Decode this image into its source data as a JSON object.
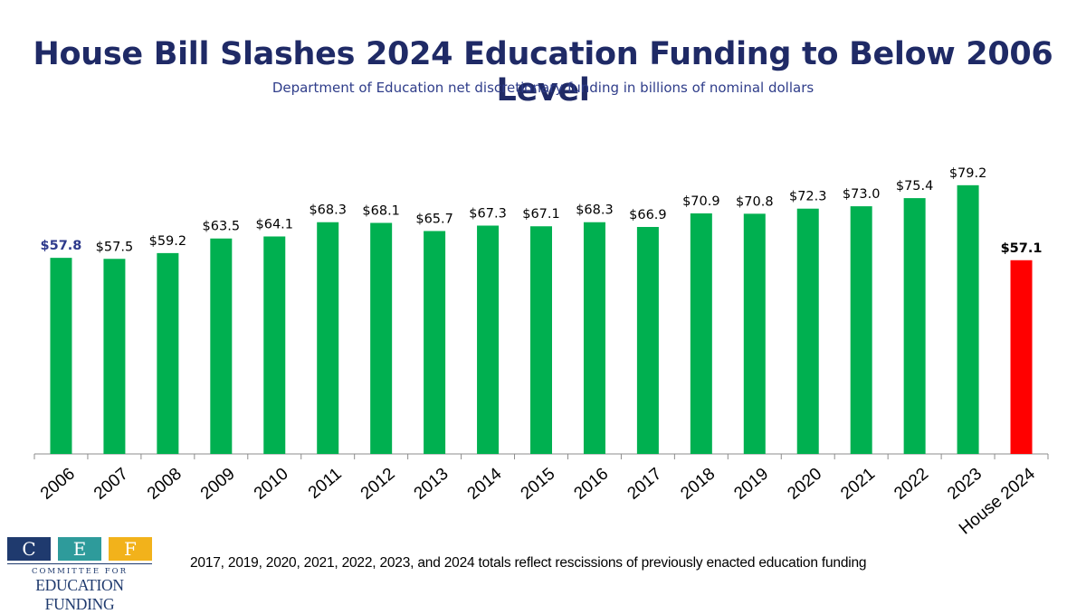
{
  "chart_data": {
    "type": "bar",
    "title": "House Bill Slashes 2024 Education Funding to Below 2006 Level",
    "subtitle": "Department of Education net discretionary funding in billions of nominal dollars",
    "categories": [
      "2006",
      "2007",
      "2008",
      "2009",
      "2010",
      "2011",
      "2012",
      "2013",
      "2014",
      "2015",
      "2016",
      "2017",
      "2018",
      "2019",
      "2020",
      "2021",
      "2022",
      "2023",
      "House 2024"
    ],
    "values": [
      57.8,
      57.5,
      59.2,
      63.5,
      64.1,
      68.3,
      68.1,
      65.7,
      67.3,
      67.1,
      68.3,
      66.9,
      70.9,
      70.8,
      72.3,
      73.0,
      75.4,
      79.2,
      57.1
    ],
    "data_labels": [
      "$57.8",
      "$57.5",
      "$59.2",
      "$63.5",
      "$64.1",
      "$68.3",
      "$68.1",
      "$65.7",
      "$67.3",
      "$67.1",
      "$68.3",
      "$66.9",
      "$70.9",
      "$70.8",
      "$72.3",
      "$73.0",
      "$75.4",
      "$79.2",
      "$57.1"
    ],
    "ylim": [
      0,
      80
    ],
    "grid": false,
    "colors": {
      "bar": "#00b050",
      "highlight_bar": "#ff0000",
      "first_label": "#2e3a8c",
      "last_label": "#000000",
      "label": "#000000"
    },
    "footnote": "2017, 2019, 2020, 2021, 2022, 2023, and 2024 totals reflect rescissions of previously enacted education funding"
  },
  "logo": {
    "letters": [
      "C",
      "E",
      "F"
    ],
    "letter_colors": [
      "#1f3a6e",
      "#2e9b9b",
      "#f2b21b"
    ],
    "line1": "COMMITTEE FOR",
    "line2": "EDUCATION FUNDING"
  }
}
